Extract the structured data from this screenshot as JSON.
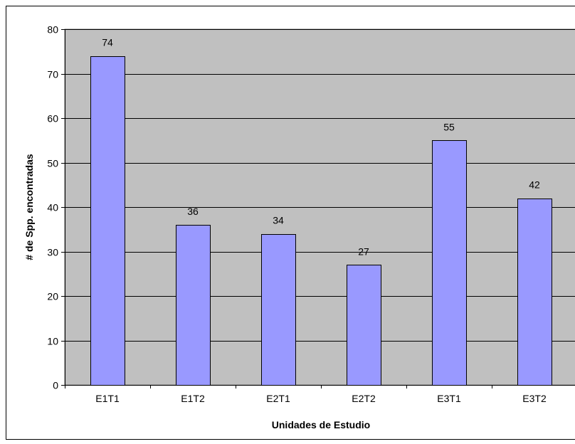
{
  "chart_data": {
    "type": "bar",
    "categories": [
      "E1T1",
      "E1T2",
      "E2T1",
      "E2T2",
      "E3T1",
      "E3T2"
    ],
    "values": [
      74,
      36,
      34,
      27,
      55,
      42
    ],
    "data_labels": [
      "74",
      "36",
      "34",
      "27",
      "55",
      "42"
    ],
    "xlabel": "Unidades de Estudio",
    "ylabel": "# de Spp. encontradas",
    "ylim": [
      0,
      80
    ],
    "yticks": [
      "0",
      "10",
      "20",
      "30",
      "40",
      "50",
      "60",
      "70",
      "80"
    ],
    "grid": true,
    "legend": "none",
    "colors": {
      "plot_background": "#c0c0c0",
      "bar_fill": "#9999ff",
      "bar_stroke": "#000000",
      "gridline": "#000000"
    }
  }
}
